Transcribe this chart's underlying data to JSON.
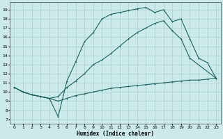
{
  "xlabel": "Humidex (Indice chaleur)",
  "bg_color": "#cceaea",
  "grid_color": "#aacccc",
  "line_color": "#1a6060",
  "xlim": [
    -0.5,
    23.5
  ],
  "ylim": [
    6.5,
    19.8
  ],
  "yticks": [
    7,
    8,
    9,
    10,
    11,
    12,
    13,
    14,
    15,
    16,
    17,
    18,
    19
  ],
  "xticks": [
    0,
    1,
    2,
    3,
    4,
    5,
    6,
    7,
    8,
    9,
    10,
    11,
    12,
    13,
    14,
    15,
    16,
    17,
    18,
    19,
    20,
    21,
    22,
    23
  ],
  "line1_x": [
    0,
    1,
    2,
    3,
    4,
    5,
    6,
    7,
    8,
    9,
    10,
    11,
    12,
    13,
    14,
    15,
    16,
    17,
    18,
    19,
    20,
    21,
    22,
    23
  ],
  "line1_y": [
    10.5,
    10.0,
    9.7,
    9.5,
    9.3,
    7.3,
    11.2,
    13.3,
    15.5,
    16.5,
    18.0,
    18.5,
    18.7,
    18.9,
    19.1,
    19.25,
    18.7,
    19.0,
    17.7,
    18.0,
    15.8,
    13.7,
    13.2,
    11.5
  ],
  "line2_x": [
    0,
    1,
    2,
    3,
    4,
    5,
    6,
    7,
    8,
    9,
    10,
    11,
    12,
    13,
    14,
    15,
    16,
    17,
    18,
    19,
    20,
    21,
    22,
    23
  ],
  "line2_y": [
    10.5,
    10.0,
    9.7,
    9.5,
    9.3,
    9.5,
    10.5,
    11.2,
    12.0,
    13.0,
    13.5,
    14.2,
    15.0,
    15.8,
    16.5,
    17.0,
    17.5,
    17.8,
    16.7,
    15.8,
    13.7,
    null,
    null,
    11.5
  ],
  "line3_x": [
    0,
    1,
    2,
    3,
    4,
    5,
    6,
    7,
    8,
    9,
    10,
    11,
    12,
    13,
    14,
    15,
    16,
    17,
    18,
    19,
    20,
    21,
    22,
    23
  ],
  "line3_y": [
    10.5,
    10.0,
    9.7,
    9.5,
    9.3,
    9.0,
    9.3,
    9.6,
    9.8,
    10.0,
    10.2,
    10.4,
    10.5,
    10.6,
    10.7,
    10.8,
    10.9,
    11.0,
    11.1,
    11.2,
    11.3,
    11.3,
    11.4,
    11.5
  ]
}
